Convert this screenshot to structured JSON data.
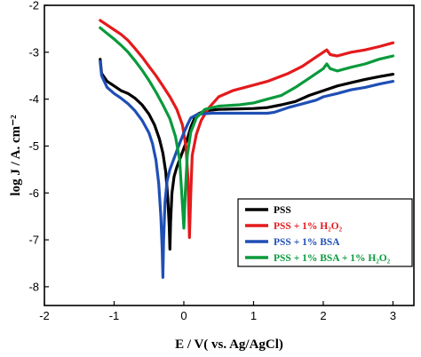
{
  "chart_data": {
    "type": "line",
    "xlabel": "E / V( vs. Ag/AgCl)",
    "ylabel": "log J / A. cm⁻²",
    "xlim": [
      -2,
      3.3
    ],
    "ylim": [
      -8.4,
      -2
    ],
    "xticks": [
      -2,
      -1,
      0,
      1,
      2,
      3
    ],
    "yticks": [
      -8,
      -7,
      -6,
      -5,
      -4,
      -3,
      -2
    ],
    "legend_position": "bottom-right",
    "series": [
      {
        "name": "PSS",
        "color": "#000000",
        "points": [
          [
            -1.2,
            -3.15
          ],
          [
            -1.18,
            -3.45
          ],
          [
            -1.1,
            -3.62
          ],
          [
            -1.0,
            -3.72
          ],
          [
            -0.9,
            -3.82
          ],
          [
            -0.8,
            -3.88
          ],
          [
            -0.7,
            -3.98
          ],
          [
            -0.6,
            -4.12
          ],
          [
            -0.5,
            -4.32
          ],
          [
            -0.42,
            -4.55
          ],
          [
            -0.35,
            -4.85
          ],
          [
            -0.3,
            -5.15
          ],
          [
            -0.26,
            -5.55
          ],
          [
            -0.23,
            -6.1
          ],
          [
            -0.21,
            -6.7
          ],
          [
            -0.2,
            -7.2
          ],
          [
            -0.19,
            -6.6
          ],
          [
            -0.17,
            -6.0
          ],
          [
            -0.14,
            -5.65
          ],
          [
            -0.1,
            -5.45
          ],
          [
            -0.05,
            -5.25
          ],
          [
            0.0,
            -5.05
          ],
          [
            0.05,
            -4.85
          ],
          [
            0.1,
            -4.6
          ],
          [
            0.15,
            -4.42
          ],
          [
            0.2,
            -4.32
          ],
          [
            0.3,
            -4.25
          ],
          [
            0.5,
            -4.22
          ],
          [
            1.0,
            -4.2
          ],
          [
            1.2,
            -4.18
          ],
          [
            1.4,
            -4.12
          ],
          [
            1.6,
            -4.05
          ],
          [
            1.8,
            -3.92
          ],
          [
            2.0,
            -3.82
          ],
          [
            2.2,
            -3.72
          ],
          [
            2.4,
            -3.65
          ],
          [
            2.6,
            -3.58
          ],
          [
            2.8,
            -3.52
          ],
          [
            3.0,
            -3.47
          ]
        ]
      },
      {
        "name": "PSS  + 1% H₂O₂",
        "color": "#e41a1c",
        "points": [
          [
            -1.2,
            -2.32
          ],
          [
            -1.1,
            -2.42
          ],
          [
            -1.0,
            -2.52
          ],
          [
            -0.9,
            -2.62
          ],
          [
            -0.8,
            -2.75
          ],
          [
            -0.7,
            -2.92
          ],
          [
            -0.6,
            -3.1
          ],
          [
            -0.5,
            -3.3
          ],
          [
            -0.4,
            -3.5
          ],
          [
            -0.3,
            -3.72
          ],
          [
            -0.2,
            -3.95
          ],
          [
            -0.1,
            -4.22
          ],
          [
            -0.02,
            -4.55
          ],
          [
            0.03,
            -5.0
          ],
          [
            0.06,
            -5.7
          ],
          [
            0.08,
            -6.95
          ],
          [
            0.1,
            -6.0
          ],
          [
            0.12,
            -5.2
          ],
          [
            0.18,
            -4.75
          ],
          [
            0.25,
            -4.45
          ],
          [
            0.35,
            -4.2
          ],
          [
            0.5,
            -3.95
          ],
          [
            0.7,
            -3.82
          ],
          [
            1.0,
            -3.7
          ],
          [
            1.2,
            -3.62
          ],
          [
            1.5,
            -3.45
          ],
          [
            1.7,
            -3.3
          ],
          [
            1.9,
            -3.1
          ],
          [
            2.0,
            -3.0
          ],
          [
            2.05,
            -2.95
          ],
          [
            2.1,
            -3.05
          ],
          [
            2.2,
            -3.08
          ],
          [
            2.4,
            -3.0
          ],
          [
            2.6,
            -2.95
          ],
          [
            2.8,
            -2.88
          ],
          [
            3.0,
            -2.8
          ]
        ]
      },
      {
        "name": "PSS  + 1% BSA",
        "color": "#1f4fb5",
        "points": [
          [
            -1.2,
            -3.2
          ],
          [
            -1.18,
            -3.5
          ],
          [
            -1.1,
            -3.75
          ],
          [
            -1.0,
            -3.88
          ],
          [
            -0.9,
            -3.98
          ],
          [
            -0.8,
            -4.1
          ],
          [
            -0.7,
            -4.25
          ],
          [
            -0.6,
            -4.45
          ],
          [
            -0.5,
            -4.72
          ],
          [
            -0.45,
            -4.95
          ],
          [
            -0.4,
            -5.3
          ],
          [
            -0.36,
            -5.8
          ],
          [
            -0.33,
            -6.5
          ],
          [
            -0.31,
            -7.2
          ],
          [
            -0.3,
            -7.8
          ],
          [
            -0.29,
            -7.0
          ],
          [
            -0.27,
            -6.2
          ],
          [
            -0.24,
            -5.75
          ],
          [
            -0.2,
            -5.5
          ],
          [
            -0.15,
            -5.3
          ],
          [
            -0.1,
            -5.1
          ],
          [
            -0.05,
            -4.9
          ],
          [
            0.0,
            -4.72
          ],
          [
            0.05,
            -4.55
          ],
          [
            0.1,
            -4.4
          ],
          [
            0.2,
            -4.32
          ],
          [
            0.4,
            -4.3
          ],
          [
            0.8,
            -4.3
          ],
          [
            1.2,
            -4.3
          ],
          [
            1.3,
            -4.28
          ],
          [
            1.5,
            -4.18
          ],
          [
            1.7,
            -4.1
          ],
          [
            1.9,
            -4.02
          ],
          [
            2.0,
            -3.95
          ],
          [
            2.2,
            -3.88
          ],
          [
            2.4,
            -3.8
          ],
          [
            2.6,
            -3.75
          ],
          [
            2.8,
            -3.68
          ],
          [
            3.0,
            -3.62
          ]
        ]
      },
      {
        "name": "PSS  + 1% BSA + 1% H₂O₂",
        "color": "#0a9a3c",
        "points": [
          [
            -1.2,
            -2.48
          ],
          [
            -1.1,
            -2.6
          ],
          [
            -1.0,
            -2.72
          ],
          [
            -0.9,
            -2.85
          ],
          [
            -0.8,
            -3.0
          ],
          [
            -0.7,
            -3.18
          ],
          [
            -0.6,
            -3.38
          ],
          [
            -0.5,
            -3.6
          ],
          [
            -0.4,
            -3.85
          ],
          [
            -0.3,
            -4.12
          ],
          [
            -0.2,
            -4.42
          ],
          [
            -0.12,
            -4.8
          ],
          [
            -0.06,
            -5.3
          ],
          [
            -0.03,
            -6.0
          ],
          [
            -0.01,
            -6.5
          ],
          [
            0.0,
            -6.75
          ],
          [
            0.02,
            -6.0
          ],
          [
            0.05,
            -5.2
          ],
          [
            0.1,
            -4.7
          ],
          [
            0.18,
            -4.4
          ],
          [
            0.3,
            -4.22
          ],
          [
            0.5,
            -4.15
          ],
          [
            0.8,
            -4.12
          ],
          [
            1.0,
            -4.08
          ],
          [
            1.2,
            -4.0
          ],
          [
            1.4,
            -3.92
          ],
          [
            1.6,
            -3.75
          ],
          [
            1.8,
            -3.55
          ],
          [
            2.0,
            -3.35
          ],
          [
            2.05,
            -3.25
          ],
          [
            2.1,
            -3.35
          ],
          [
            2.2,
            -3.4
          ],
          [
            2.4,
            -3.32
          ],
          [
            2.6,
            -3.25
          ],
          [
            2.8,
            -3.15
          ],
          [
            3.0,
            -3.08
          ]
        ]
      }
    ]
  }
}
